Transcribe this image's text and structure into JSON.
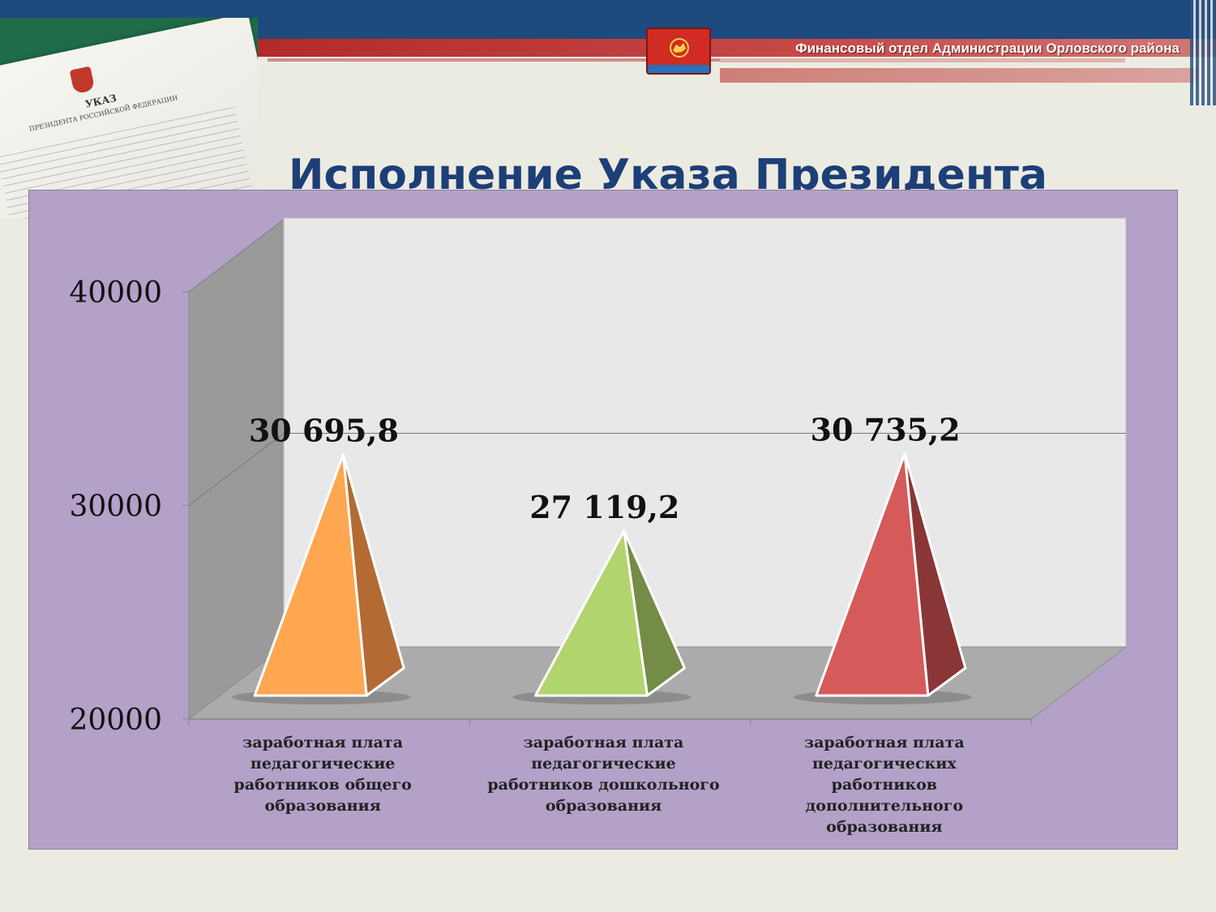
{
  "header": {
    "org_text": "Финансовый отдел Администрации Орловского района"
  },
  "page": {
    "title": "Исполнение Указа Президента"
  },
  "decree_photo": {
    "title": "УКАЗ",
    "subtitle": "ПРЕЗИДЕНТА РОССИЙСКОЙ ФЕДЕРАЦИИ"
  },
  "colors": {
    "header_blue": "#1f4a7d",
    "header_red": "#b32a2a",
    "title": "#1d3f77",
    "panel": "#b3a1c8"
  },
  "chart_data": {
    "type": "bar",
    "style": "3d-pyramid",
    "ylim": [
      20000,
      40000
    ],
    "yticks": [
      "20000",
      "30000",
      "40000"
    ],
    "grid": true,
    "categories": [
      [
        "заработная плата",
        "педагогические",
        "работников общего",
        "образования"
      ],
      [
        "заработная плата",
        "педагогические",
        "работников дошкольного",
        "образования"
      ],
      [
        "заработная плата",
        "педагогических",
        "работников",
        "дополнительного",
        "образования"
      ]
    ],
    "values": [
      30695.8,
      27119.2,
      30735.2
    ],
    "data_labels": [
      "30 695,8",
      "27 119,2",
      "30 735,2"
    ],
    "colors": [
      {
        "front": "#ffa650",
        "side": "#b46a33"
      },
      {
        "front": "#b2d46e",
        "side": "#748c45"
      },
      {
        "front": "#d45b59",
        "side": "#8a3636"
      }
    ]
  }
}
